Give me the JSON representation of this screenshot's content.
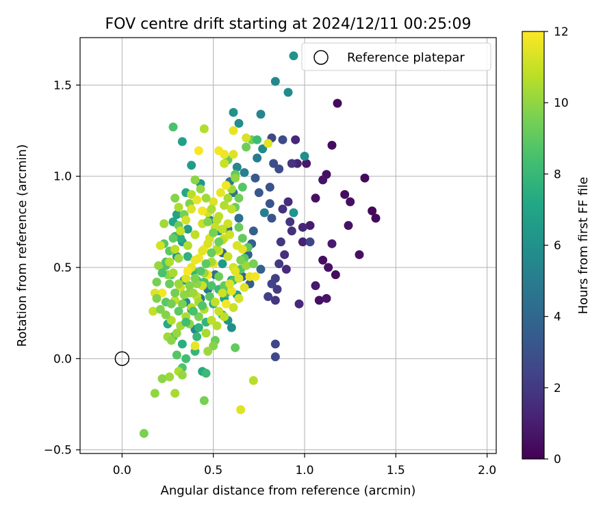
{
  "chart_data": {
    "type": "scatter",
    "title": "FOV centre drift starting at 2024/12/11 00:25:09",
    "xlabel": "Angular distance from reference (arcmin)",
    "ylabel": "Rotation from reference (arcmin)",
    "xlim": [
      -0.23,
      2.05
    ],
    "ylim": [
      -0.52,
      1.76
    ],
    "xticks": [
      0.0,
      0.5,
      1.0,
      1.5,
      2.0
    ],
    "xtick_labels": [
      "0.0",
      "0.5",
      "1.0",
      "1.5",
      "2.0"
    ],
    "yticks": [
      -0.5,
      0.0,
      0.5,
      1.0,
      1.5
    ],
    "ytick_labels": [
      "−0.5",
      "0.0",
      "0.5",
      "1.0",
      "1.5"
    ],
    "grid": true,
    "legend": {
      "position": "top-right",
      "entries": [
        {
          "label": "Reference platepar",
          "marker": "open-circle",
          "x": 0.0,
          "y": 0.0
        }
      ]
    },
    "colorbar": {
      "label": "Hours from first FF file",
      "range": [
        0,
        12
      ],
      "ticks": [
        0,
        2,
        4,
        6,
        8,
        10,
        12
      ],
      "tick_labels": [
        "0",
        "2",
        "4",
        "6",
        "8",
        "10",
        "12"
      ],
      "colormap": "viridis"
    },
    "points": [
      [
        1.18,
        1.4,
        0.3
      ],
      [
        1.15,
        1.17,
        0.4
      ],
      [
        1.12,
        1.01,
        0.5
      ],
      [
        1.1,
        0.98,
        0.6
      ],
      [
        1.33,
        0.99,
        0.3
      ],
      [
        1.22,
        0.9,
        0.4
      ],
      [
        1.25,
        0.86,
        0.5
      ],
      [
        1.37,
        0.81,
        0.2
      ],
      [
        1.39,
        0.77,
        0.3
      ],
      [
        1.24,
        0.73,
        0.6
      ],
      [
        1.3,
        0.57,
        0.5
      ],
      [
        1.15,
        0.63,
        0.9
      ],
      [
        1.1,
        0.54,
        0.4
      ],
      [
        1.13,
        0.5,
        0.6
      ],
      [
        1.17,
        0.46,
        0.3
      ],
      [
        1.06,
        0.4,
        0.8
      ],
      [
        1.08,
        0.32,
        0.5
      ],
      [
        1.12,
        0.33,
        0.7
      ],
      [
        1.06,
        0.88,
        0.5
      ],
      [
        1.03,
        0.73,
        0.9
      ],
      [
        1.01,
        1.07,
        0.8
      ],
      [
        0.96,
        1.07,
        1.2
      ],
      [
        0.99,
        0.64,
        1.1
      ],
      [
        0.99,
        0.72,
        1.3
      ],
      [
        0.97,
        0.3,
        1.4
      ],
      [
        0.91,
        0.86,
        1.5
      ],
      [
        0.93,
        0.7,
        1.6
      ],
      [
        0.92,
        0.75,
        1.8
      ],
      [
        0.88,
        0.82,
        1.7
      ],
      [
        0.87,
        0.64,
        1.9
      ],
      [
        0.9,
        0.49,
        1.5
      ],
      [
        0.86,
        0.52,
        2.0
      ],
      [
        0.89,
        0.57,
        1.6
      ],
      [
        0.84,
        0.44,
        2.2
      ],
      [
        0.85,
        0.38,
        2.1
      ],
      [
        0.84,
        0.32,
        1.9
      ],
      [
        0.82,
        0.41,
        2.4
      ],
      [
        0.8,
        0.34,
        2.3
      ],
      [
        0.84,
        0.08,
        2.5
      ],
      [
        0.84,
        0.01,
        2.6
      ],
      [
        0.88,
        1.2,
        2.7
      ],
      [
        0.82,
        1.21,
        2.6
      ],
      [
        0.83,
        1.07,
        2.9
      ],
      [
        0.81,
        0.94,
        3.0
      ],
      [
        0.86,
        1.04,
        2.8
      ],
      [
        0.82,
        0.77,
        3.1
      ],
      [
        0.81,
        0.85,
        3.2
      ],
      [
        0.75,
        0.91,
        3.3
      ],
      [
        0.73,
        0.99,
        3.4
      ],
      [
        0.72,
        0.7,
        3.6
      ],
      [
        0.71,
        0.63,
        3.7
      ],
      [
        0.69,
        0.57,
        3.8
      ],
      [
        0.66,
        0.45,
        3.9
      ],
      [
        0.7,
        0.41,
        3.5
      ],
      [
        0.76,
        0.49,
        3.7
      ],
      [
        1.03,
        0.64,
        2.4
      ],
      [
        0.95,
        1.2,
        1.3
      ],
      [
        0.93,
        1.07,
        1.8
      ],
      [
        0.91,
        1.46,
        5.7
      ],
      [
        0.94,
        1.66,
        6.1
      ],
      [
        0.84,
        1.52,
        5.5
      ],
      [
        0.76,
        1.34,
        5.4
      ],
      [
        0.61,
        1.35,
        6.0
      ],
      [
        0.64,
        1.29,
        5.9
      ],
      [
        0.77,
        1.15,
        5.6
      ],
      [
        0.74,
        1.1,
        5.0
      ],
      [
        0.67,
        1.02,
        5.2
      ],
      [
        0.63,
        1.05,
        5.4
      ],
      [
        1.0,
        1.11,
        5.8
      ],
      [
        0.94,
        0.8,
        6.2
      ],
      [
        0.78,
        0.8,
        5.1
      ],
      [
        0.59,
        0.97,
        4.9
      ],
      [
        0.61,
        0.91,
        4.6
      ],
      [
        0.64,
        0.77,
        4.4
      ],
      [
        0.58,
        0.71,
        4.2
      ],
      [
        0.55,
        0.58,
        4.1
      ],
      [
        0.51,
        0.46,
        4.3
      ],
      [
        0.47,
        0.38,
        4.7
      ],
      [
        0.43,
        0.33,
        4.8
      ],
      [
        0.38,
        0.27,
        5.3
      ],
      [
        0.4,
        0.16,
        5.6
      ],
      [
        0.35,
        0.31,
        5.8
      ],
      [
        0.34,
        0.43,
        6.0
      ],
      [
        0.3,
        0.56,
        6.3
      ],
      [
        0.33,
        0.64,
        6.5
      ],
      [
        0.36,
        0.71,
        6.7
      ],
      [
        0.3,
        0.79,
        6.9
      ],
      [
        0.28,
        0.75,
        7.1
      ],
      [
        0.35,
        0.91,
        7.2
      ],
      [
        0.33,
        1.19,
        6.8
      ],
      [
        0.38,
        1.06,
        6.6
      ],
      [
        0.28,
        1.27,
        8.5
      ],
      [
        0.45,
        1.26,
        10.6
      ],
      [
        0.43,
        0.96,
        6.3
      ],
      [
        0.48,
        0.76,
        5.7
      ],
      [
        0.53,
        0.7,
        6.1
      ],
      [
        0.55,
        0.52,
        6.4
      ],
      [
        0.6,
        0.43,
        6.6
      ],
      [
        0.63,
        0.35,
        6.8
      ],
      [
        0.56,
        0.33,
        7.0
      ],
      [
        0.6,
        0.17,
        5.9
      ],
      [
        0.58,
        0.21,
        6.2
      ],
      [
        0.55,
        0.24,
        7.4
      ],
      [
        0.5,
        0.3,
        7.6
      ],
      [
        0.46,
        0.2,
        7.8
      ],
      [
        0.42,
        0.17,
        7.7
      ],
      [
        0.41,
        0.12,
        8.0
      ],
      [
        0.44,
        -0.07,
        7.3
      ],
      [
        0.46,
        -0.08,
        8.1
      ],
      [
        0.4,
        0.04,
        7.9
      ],
      [
        0.35,
        0.0,
        8.3
      ],
      [
        0.33,
        -0.05,
        8.6
      ],
      [
        0.3,
        0.02,
        8.8
      ],
      [
        0.33,
        0.08,
        7.5
      ],
      [
        0.28,
        0.12,
        8.2
      ],
      [
        0.25,
        0.19,
        7.3
      ],
      [
        0.24,
        0.31,
        8.9
      ],
      [
        0.27,
        0.46,
        8.6
      ],
      [
        0.24,
        0.51,
        8.7
      ],
      [
        0.23,
        0.63,
        8.8
      ],
      [
        0.29,
        0.67,
        7.8
      ],
      [
        0.32,
        0.66,
        7.5
      ],
      [
        0.36,
        0.56,
        7.7
      ],
      [
        0.39,
        0.48,
        7.9
      ],
      [
        0.41,
        0.43,
        8.2
      ],
      [
        0.45,
        0.42,
        8.4
      ],
      [
        0.49,
        0.4,
        8.6
      ],
      [
        0.53,
        0.38,
        8.1
      ],
      [
        0.57,
        0.36,
        8.3
      ],
      [
        0.61,
        0.43,
        8.5
      ],
      [
        0.65,
        0.49,
        8.7
      ],
      [
        0.67,
        0.55,
        8.9
      ],
      [
        0.69,
        0.61,
        9.0
      ],
      [
        0.66,
        0.66,
        9.1
      ],
      [
        0.64,
        0.72,
        9.2
      ],
      [
        0.62,
        0.83,
        9.3
      ],
      [
        0.64,
        0.88,
        9.4
      ],
      [
        0.66,
        0.94,
        8.8
      ],
      [
        0.62,
        1.01,
        9.0
      ],
      [
        0.58,
        1.09,
        9.2
      ],
      [
        0.68,
        1.16,
        9.3
      ],
      [
        0.71,
        1.2,
        9.4
      ],
      [
        0.74,
        1.2,
        8.2
      ],
      [
        0.62,
        0.06,
        9.1
      ],
      [
        0.51,
        0.1,
        9.3
      ],
      [
        0.5,
        0.07,
        9.8
      ],
      [
        0.47,
        0.04,
        10.2
      ],
      [
        0.42,
        0.23,
        9.6
      ],
      [
        0.37,
        0.19,
        9.9
      ],
      [
        0.31,
        -0.07,
        10.5
      ],
      [
        0.33,
        -0.09,
        10.1
      ],
      [
        0.26,
        -0.1,
        10.2
      ],
      [
        0.29,
        -0.19,
        10.4
      ],
      [
        0.18,
        -0.19,
        10.0
      ],
      [
        0.22,
        -0.11,
        9.9
      ],
      [
        0.12,
        -0.41,
        9.6
      ],
      [
        0.45,
        -0.23,
        9.5
      ],
      [
        0.65,
        -0.28,
        11.4
      ],
      [
        0.72,
        -0.12,
        10.7
      ],
      [
        0.17,
        0.26,
        10.9
      ],
      [
        0.21,
        0.27,
        9.7
      ],
      [
        0.25,
        0.12,
        10.3
      ],
      [
        0.27,
        0.21,
        10.6
      ],
      [
        0.29,
        0.32,
        10.9
      ],
      [
        0.32,
        0.39,
        11.1
      ],
      [
        0.35,
        0.44,
        11.3
      ],
      [
        0.38,
        0.5,
        11.5
      ],
      [
        0.42,
        0.55,
        11.7
      ],
      [
        0.45,
        0.6,
        11.9
      ],
      [
        0.48,
        0.66,
        11.2
      ],
      [
        0.51,
        0.72,
        11.0
      ],
      [
        0.53,
        0.78,
        10.8
      ],
      [
        0.56,
        0.84,
        10.6
      ],
      [
        0.58,
        0.88,
        10.4
      ],
      [
        0.6,
        0.93,
        10.2
      ],
      [
        0.62,
        0.99,
        10.0
      ],
      [
        0.61,
        1.12,
        11.4
      ],
      [
        0.61,
        1.25,
        11.6
      ],
      [
        0.68,
        1.21,
        11.3
      ],
      [
        0.8,
        1.18,
        11.5
      ],
      [
        0.56,
        1.12,
        11.7
      ],
      [
        0.53,
        1.14,
        11.8
      ],
      [
        0.56,
        1.07,
        11.0
      ],
      [
        0.42,
        1.14,
        11.9
      ],
      [
        0.38,
        0.9,
        10.7
      ],
      [
        0.31,
        0.83,
        10.5
      ],
      [
        0.23,
        0.74,
        10.3
      ],
      [
        0.29,
        0.88,
        9.8
      ],
      [
        0.21,
        0.62,
        11.2
      ],
      [
        0.2,
        0.51,
        10.1
      ],
      [
        0.19,
        0.42,
        9.5
      ],
      [
        0.22,
        0.36,
        11.8
      ],
      [
        0.18,
        0.36,
        11.4
      ],
      [
        0.19,
        0.33,
        9.7
      ],
      [
        0.25,
        0.46,
        10.0
      ],
      [
        0.31,
        0.55,
        10.2
      ],
      [
        0.36,
        0.62,
        10.6
      ],
      [
        0.4,
        0.68,
        10.8
      ],
      [
        0.44,
        0.74,
        11.0
      ],
      [
        0.47,
        0.8,
        11.2
      ],
      [
        0.5,
        0.86,
        11.4
      ],
      [
        0.54,
        0.91,
        11.6
      ],
      [
        0.57,
        0.95,
        11.8
      ],
      [
        0.6,
        0.82,
        10.9
      ],
      [
        0.58,
        0.74,
        11.1
      ],
      [
        0.56,
        0.66,
        11.3
      ],
      [
        0.53,
        0.59,
        11.5
      ],
      [
        0.5,
        0.52,
        11.7
      ],
      [
        0.47,
        0.46,
        11.9
      ],
      [
        0.44,
        0.4,
        11.1
      ],
      [
        0.41,
        0.34,
        10.9
      ],
      [
        0.38,
        0.28,
        10.7
      ],
      [
        0.35,
        0.23,
        10.5
      ],
      [
        0.32,
        0.18,
        10.3
      ],
      [
        0.3,
        0.14,
        10.1
      ],
      [
        0.27,
        0.1,
        9.9
      ],
      [
        0.4,
        0.07,
        11.6
      ],
      [
        0.46,
        0.14,
        10.4
      ],
      [
        0.52,
        0.18,
        10.6
      ],
      [
        0.56,
        0.23,
        10.8
      ],
      [
        0.61,
        0.28,
        11.0
      ],
      [
        0.64,
        0.33,
        11.2
      ],
      [
        0.67,
        0.39,
        11.4
      ],
      [
        0.7,
        0.45,
        11.6
      ],
      [
        0.73,
        0.45,
        11.8
      ],
      [
        0.68,
        0.51,
        10.2
      ],
      [
        0.72,
        0.52,
        9.5
      ],
      [
        0.66,
        0.6,
        11.5
      ],
      [
        0.63,
        0.62,
        11.3
      ],
      [
        0.59,
        0.68,
        11.1
      ],
      [
        0.55,
        0.71,
        10.9
      ],
      [
        0.52,
        0.76,
        10.7
      ],
      [
        0.49,
        0.82,
        10.5
      ],
      [
        0.46,
        0.88,
        10.3
      ],
      [
        0.43,
        0.93,
        10.1
      ],
      [
        0.4,
        0.98,
        9.9
      ],
      [
        0.37,
        0.85,
        9.7
      ],
      [
        0.34,
        0.79,
        9.5
      ],
      [
        0.31,
        0.73,
        9.3
      ],
      [
        0.28,
        0.66,
        9.1
      ],
      [
        0.26,
        0.59,
        8.9
      ],
      [
        0.24,
        0.53,
        8.7
      ],
      [
        0.22,
        0.47,
        8.5
      ],
      [
        0.26,
        0.41,
        9.2
      ],
      [
        0.29,
        0.36,
        9.4
      ],
      [
        0.33,
        0.3,
        9.6
      ],
      [
        0.37,
        0.36,
        9.8
      ],
      [
        0.41,
        0.41,
        10.0
      ],
      [
        0.45,
        0.47,
        10.2
      ],
      [
        0.49,
        0.53,
        10.4
      ],
      [
        0.52,
        0.6,
        10.6
      ],
      [
        0.55,
        0.65,
        10.8
      ],
      [
        0.58,
        0.56,
        11.0
      ],
      [
        0.61,
        0.5,
        11.2
      ],
      [
        0.64,
        0.44,
        11.4
      ],
      [
        0.6,
        0.37,
        11.6
      ],
      [
        0.57,
        0.3,
        11.8
      ],
      [
        0.53,
        0.26,
        11.0
      ],
      [
        0.49,
        0.21,
        10.8
      ],
      [
        0.45,
        0.27,
        10.6
      ],
      [
        0.42,
        0.31,
        10.4
      ],
      [
        0.39,
        0.36,
        10.2
      ],
      [
        0.36,
        0.48,
        11.9
      ],
      [
        0.4,
        0.54,
        11.7
      ],
      [
        0.44,
        0.59,
        11.5
      ],
      [
        0.47,
        0.63,
        11.3
      ],
      [
        0.5,
        0.69,
        11.1
      ],
      [
        0.53,
        0.64,
        9.4
      ],
      [
        0.49,
        0.58,
        9.2
      ],
      [
        0.46,
        0.52,
        9.0
      ],
      [
        0.43,
        0.48,
        8.8
      ],
      [
        0.4,
        0.44,
        9.6
      ],
      [
        0.37,
        0.4,
        9.8
      ],
      [
        0.34,
        0.35,
        10.0
      ],
      [
        0.31,
        0.41,
        10.2
      ],
      [
        0.28,
        0.47,
        10.4
      ],
      [
        0.26,
        0.53,
        10.6
      ],
      [
        0.29,
        0.6,
        10.8
      ],
      [
        0.32,
        0.7,
        11.0
      ],
      [
        0.35,
        0.76,
        11.2
      ],
      [
        0.38,
        0.82,
        11.4
      ],
      [
        0.41,
        0.87,
        11.6
      ],
      [
        0.44,
        0.81,
        11.8
      ],
      [
        0.47,
        0.75,
        9.7
      ],
      [
        0.5,
        0.69,
        9.5
      ],
      [
        0.53,
        0.45,
        9.3
      ],
      [
        0.56,
        0.4,
        9.1
      ],
      [
        0.48,
        0.34,
        8.9
      ],
      [
        0.44,
        0.29,
        8.7
      ],
      [
        0.39,
        0.26,
        8.5
      ],
      [
        0.35,
        0.2,
        8.3
      ],
      [
        0.31,
        0.26,
        9.0
      ],
      [
        0.27,
        0.3,
        9.4
      ],
      [
        0.24,
        0.24,
        9.8
      ],
      [
        0.51,
        0.31,
        10.9
      ],
      [
        0.55,
        0.36,
        11.1
      ],
      [
        0.59,
        0.41,
        11.3
      ],
      [
        0.62,
        0.48,
        11.5
      ],
      [
        0.65,
        0.54,
        9.6
      ]
    ]
  }
}
